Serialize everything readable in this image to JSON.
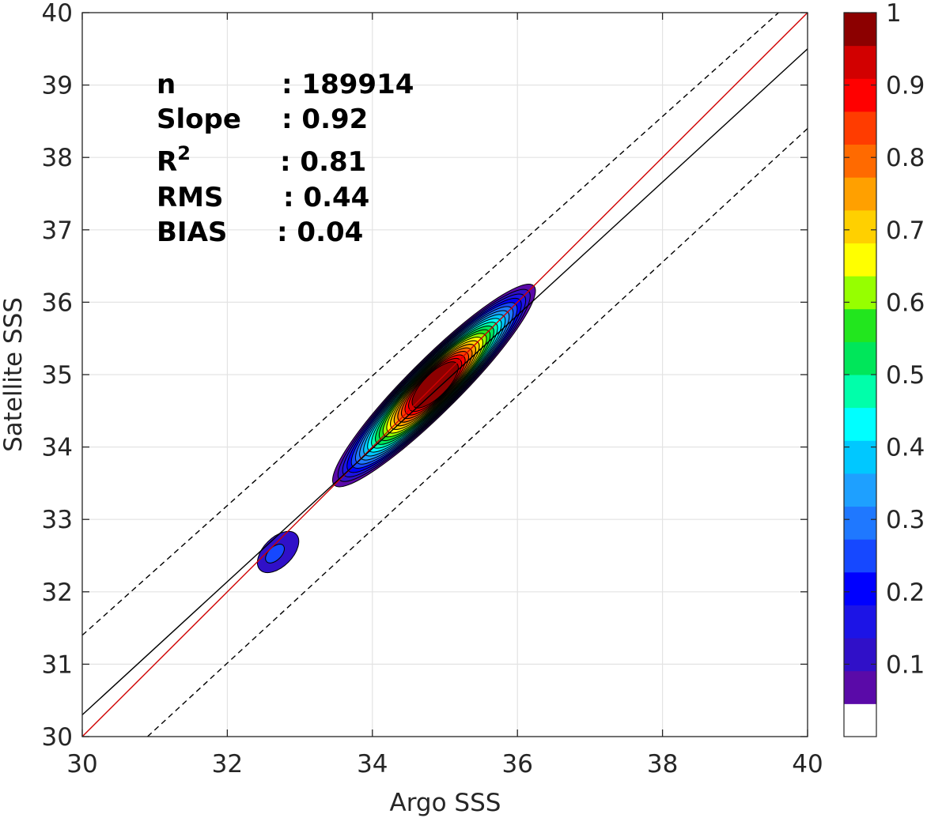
{
  "chart_data": {
    "type": "contour-density-scatter",
    "xlabel": "Argo SSS",
    "ylabel": "Satellite SSS",
    "xlim": [
      30,
      40
    ],
    "ylim": [
      30,
      40
    ],
    "xticks": [
      "30",
      "32",
      "34",
      "36",
      "38",
      "40"
    ],
    "yticks": [
      "30",
      "31",
      "32",
      "33",
      "34",
      "35",
      "36",
      "37",
      "38",
      "39",
      "40"
    ],
    "grid": true,
    "stats": {
      "n_label": "n",
      "n_value": ": 189914",
      "slope_label": "Slope",
      "slope_value": ": 0.92",
      "r2_label": "R",
      "r2_sup": "2",
      "r2_value": ": 0.81",
      "rms_label": "RMS",
      "rms_value": ": 0.44",
      "bias_label": "BIAS",
      "bias_value": ": 0.04"
    },
    "lines": [
      {
        "kind": "one-to-one",
        "color": "#d00000",
        "x": [
          30,
          40
        ],
        "y": [
          30,
          40
        ]
      },
      {
        "kind": "regression",
        "color": "#000000",
        "x": [
          30,
          40
        ],
        "y": [
          30.3,
          39.5
        ]
      },
      {
        "kind": "upper-bound",
        "color": "#000000",
        "dashed": true,
        "x": [
          30,
          39.6
        ],
        "y": [
          31.4,
          40
        ]
      },
      {
        "kind": "lower-bound",
        "color": "#000000",
        "dashed": true,
        "x": [
          30.9,
          40
        ],
        "y": [
          30,
          38.4
        ]
      }
    ],
    "density": {
      "center": [
        34.85,
        34.85
      ],
      "along_axis_angle_deg": 45,
      "note_levels": "normalized density 0-1, 20 contour bands"
    },
    "colorbar": {
      "range": [
        0,
        1
      ],
      "tick_labels": [
        "0.1",
        "0.2",
        "0.3",
        "0.4",
        "0.5",
        "0.6",
        "0.7",
        "0.8",
        "0.9",
        "1"
      ],
      "tick_values": [
        0.1,
        0.2,
        0.3,
        0.4,
        0.5,
        0.6,
        0.7,
        0.8,
        0.9,
        1.0
      ],
      "colors": [
        "#ffffff",
        "#5a0aa8",
        "#3010c8",
        "#1c14e6",
        "#0000ff",
        "#1648ff",
        "#1f78ff",
        "#1ea0ff",
        "#00c8ff",
        "#00ffff",
        "#00ffaa",
        "#00e65a",
        "#22e61e",
        "#96ff00",
        "#ffff00",
        "#ffd000",
        "#ffa000",
        "#ff6a00",
        "#ff3c00",
        "#ff0000",
        "#d20000",
        "#8c0000"
      ]
    }
  }
}
